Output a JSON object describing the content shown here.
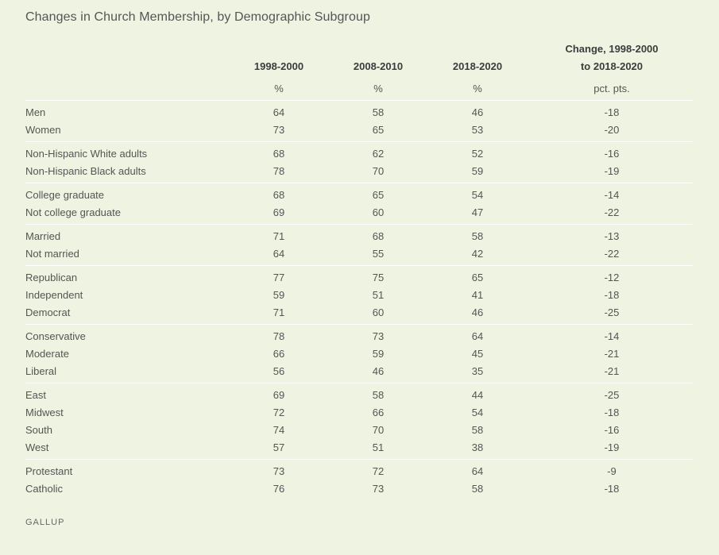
{
  "title": "Changes in Church Membership, by Demographic Subgroup",
  "source": "GALLUP",
  "colors": {
    "background": "#eef3e2",
    "separator": "#ffffff",
    "text": "#555555"
  },
  "chart_data": {
    "type": "table",
    "title": "Changes in Church Membership, by Demographic Subgroup",
    "columns": [
      {
        "header": [
          "1998-2000"
        ],
        "unit": "%"
      },
      {
        "header": [
          "2008-2010"
        ],
        "unit": "%"
      },
      {
        "header": [
          "2018-2020"
        ],
        "unit": "%"
      },
      {
        "header": [
          "Change, 1998-2000",
          "to 2018-2020"
        ],
        "unit": "pct. pts."
      }
    ],
    "groups": [
      [
        {
          "label": "Men",
          "values": [
            "64",
            "58",
            "46",
            "-18"
          ]
        },
        {
          "label": "Women",
          "values": [
            "73",
            "65",
            "53",
            "-20"
          ]
        }
      ],
      [
        {
          "label": "Non-Hispanic White adults",
          "values": [
            "68",
            "62",
            "52",
            "-16"
          ]
        },
        {
          "label": "Non-Hispanic Black adults",
          "values": [
            "78",
            "70",
            "59",
            "-19"
          ]
        }
      ],
      [
        {
          "label": "College graduate",
          "values": [
            "68",
            "65",
            "54",
            "-14"
          ]
        },
        {
          "label": "Not college graduate",
          "values": [
            "69",
            "60",
            "47",
            "-22"
          ]
        }
      ],
      [
        {
          "label": "Married",
          "values": [
            "71",
            "68",
            "58",
            "-13"
          ]
        },
        {
          "label": "Not married",
          "values": [
            "64",
            "55",
            "42",
            "-22"
          ]
        }
      ],
      [
        {
          "label": "Republican",
          "values": [
            "77",
            "75",
            "65",
            "-12"
          ]
        },
        {
          "label": "Independent",
          "values": [
            "59",
            "51",
            "41",
            "-18"
          ]
        },
        {
          "label": "Democrat",
          "values": [
            "71",
            "60",
            "46",
            "-25"
          ]
        }
      ],
      [
        {
          "label": "Conservative",
          "values": [
            "78",
            "73",
            "64",
            "-14"
          ]
        },
        {
          "label": "Moderate",
          "values": [
            "66",
            "59",
            "45",
            "-21"
          ]
        },
        {
          "label": "Liberal",
          "values": [
            "56",
            "46",
            "35",
            "-21"
          ]
        }
      ],
      [
        {
          "label": "East",
          "values": [
            "69",
            "58",
            "44",
            "-25"
          ]
        },
        {
          "label": "Midwest",
          "values": [
            "72",
            "66",
            "54",
            "-18"
          ]
        },
        {
          "label": "South",
          "values": [
            "74",
            "70",
            "58",
            "-16"
          ]
        },
        {
          "label": "West",
          "values": [
            "57",
            "51",
            "38",
            "-19"
          ]
        }
      ],
      [
        {
          "label": "Protestant",
          "values": [
            "73",
            "72",
            "64",
            "-9"
          ]
        },
        {
          "label": "Catholic",
          "values": [
            "76",
            "73",
            "58",
            "-18"
          ]
        }
      ]
    ]
  }
}
